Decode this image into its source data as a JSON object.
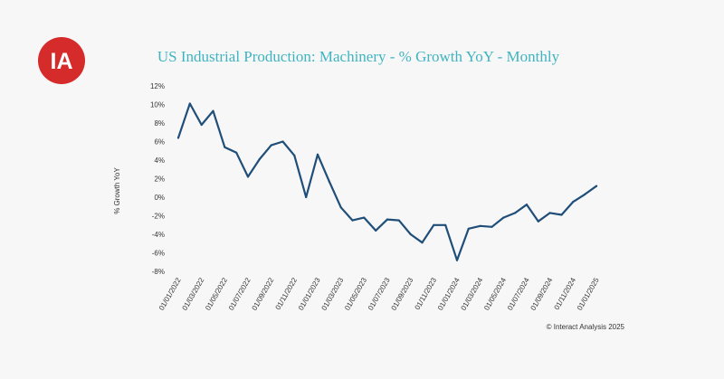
{
  "logo": {
    "text": "IA",
    "color": "#d52b2b"
  },
  "copyright": "© Interact Analysis 2025",
  "colors": {
    "line": "#1f4e79",
    "title": "#3fb4c0"
  },
  "chart_data": {
    "type": "line",
    "title": "US Industrial Production: Machinery - % Growth YoY - Monthly",
    "xlabel": "",
    "ylabel": "% Growth YoY",
    "ylim": [
      -8,
      12
    ],
    "yticks": [
      12,
      10,
      8,
      6,
      4,
      2,
      0,
      -2,
      -4,
      -6,
      -8
    ],
    "ytick_labels": [
      "12%",
      "10%",
      "8%",
      "6%",
      "4%",
      "2%",
      "0%",
      "-2%",
      "-4%",
      "-6%",
      "-8%"
    ],
    "grid": false,
    "x": [
      "01/01/2022",
      "01/02/2022",
      "01/03/2022",
      "01/04/2022",
      "01/05/2022",
      "01/06/2022",
      "01/07/2022",
      "01/08/2022",
      "01/09/2022",
      "01/10/2022",
      "01/11/2022",
      "01/12/2022",
      "01/01/2023",
      "01/02/2023",
      "01/03/2023",
      "01/04/2023",
      "01/05/2023",
      "01/06/2023",
      "01/07/2023",
      "01/08/2023",
      "01/09/2023",
      "01/10/2023",
      "01/11/2023",
      "01/12/2023",
      "01/01/2024",
      "01/02/2024",
      "01/03/2024",
      "01/04/2024",
      "01/05/2024",
      "01/06/2024",
      "01/07/2024",
      "01/08/2024",
      "01/09/2024",
      "01/10/2024",
      "01/11/2024",
      "01/12/2024",
      "01/01/2025"
    ],
    "xtick_labels": [
      "01/01/2022",
      "01/03/2022",
      "01/05/2022",
      "01/07/2022",
      "01/09/2022",
      "01/11/2022",
      "01/01/2023",
      "01/03/2023",
      "01/05/2023",
      "01/07/2023",
      "01/09/2023",
      "01/11/2023",
      "01/01/2024",
      "01/03/2024",
      "01/05/2024",
      "01/07/2024",
      "01/09/2024",
      "01/11/2024",
      "01/01/2025"
    ],
    "series": [
      {
        "name": "Machinery % Growth YoY",
        "values": [
          6.4,
          10.1,
          7.8,
          9.3,
          5.4,
          4.8,
          2.2,
          4.1,
          5.6,
          6.0,
          4.5,
          0.0,
          4.6,
          1.7,
          -1.1,
          -2.5,
          -2.2,
          -3.6,
          -2.4,
          -2.5,
          -4.0,
          -4.9,
          -3.0,
          -3.0,
          -6.8,
          -3.4,
          -3.1,
          -3.2,
          -2.2,
          -1.7,
          -0.8,
          -2.6,
          -1.7,
          -1.9,
          -0.5,
          0.3,
          1.2
        ]
      }
    ]
  }
}
